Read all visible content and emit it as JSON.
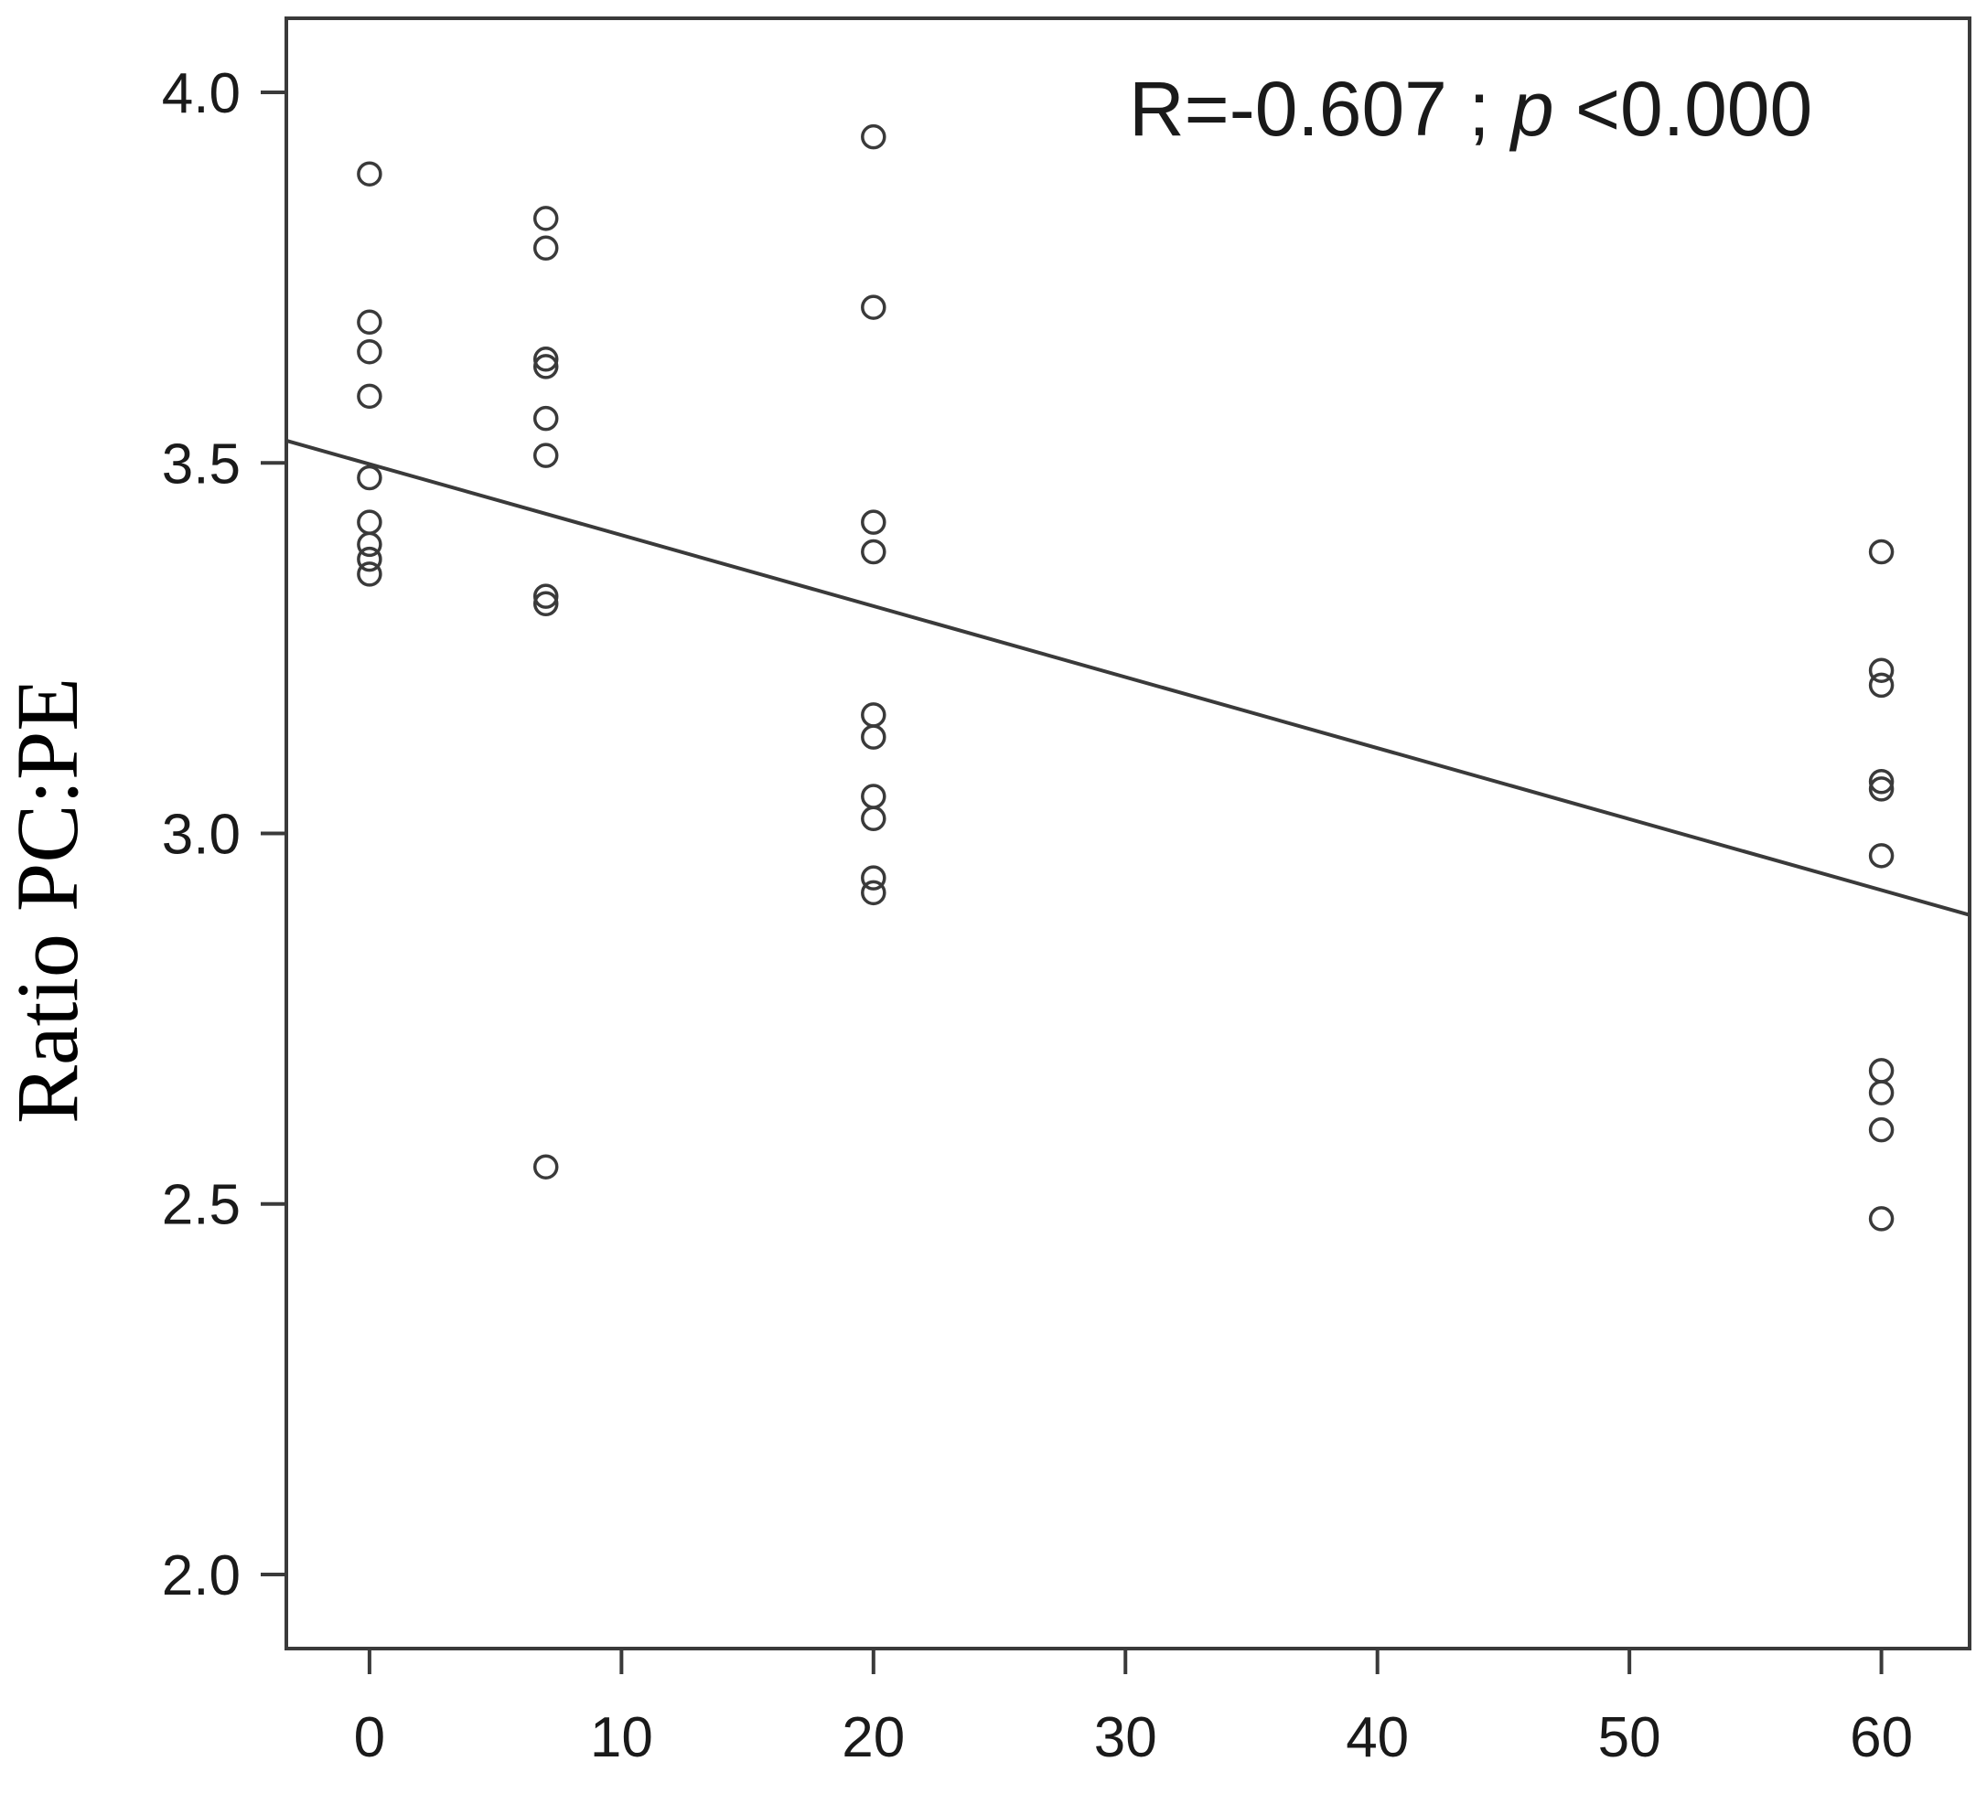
{
  "chart_data": {
    "type": "scatter",
    "title": "",
    "xlabel": "",
    "ylabel": "Ratio PC:PE",
    "xlim": [
      -3.3,
      63.5
    ],
    "ylim": [
      1.9,
      4.1
    ],
    "x_ticks": [
      0,
      10,
      20,
      30,
      40,
      50,
      60
    ],
    "x_tick_labels": [
      "0",
      "10",
      "20",
      "30",
      "40",
      "50",
      "60"
    ],
    "y_ticks": [
      2.0,
      2.5,
      3.0,
      3.5,
      4.0
    ],
    "y_tick_labels": [
      "2.0",
      "2.5",
      "3.0",
      "3.5",
      "4.0"
    ],
    "grid": false,
    "annotation": {
      "prefix": "R=-0.607 ; ",
      "p_symbol": "p",
      "suffix": " <0.000"
    },
    "points": [
      {
        "x": 0,
        "y": 3.89
      },
      {
        "x": 0,
        "y": 3.69
      },
      {
        "x": 0,
        "y": 3.65
      },
      {
        "x": 0,
        "y": 3.59
      },
      {
        "x": 0,
        "y": 3.48
      },
      {
        "x": 0,
        "y": 3.42
      },
      {
        "x": 0,
        "y": 3.39
      },
      {
        "x": 0,
        "y": 3.37
      },
      {
        "x": 0,
        "y": 3.35
      },
      {
        "x": 7,
        "y": 3.83
      },
      {
        "x": 7,
        "y": 3.79
      },
      {
        "x": 7,
        "y": 3.64
      },
      {
        "x": 7,
        "y": 3.63
      },
      {
        "x": 7,
        "y": 3.56
      },
      {
        "x": 7,
        "y": 3.51
      },
      {
        "x": 7,
        "y": 3.32
      },
      {
        "x": 7,
        "y": 3.31
      },
      {
        "x": 7,
        "y": 2.55
      },
      {
        "x": 20,
        "y": 3.94
      },
      {
        "x": 20,
        "y": 3.71
      },
      {
        "x": 20,
        "y": 3.42
      },
      {
        "x": 20,
        "y": 3.38
      },
      {
        "x": 20,
        "y": 3.16
      },
      {
        "x": 20,
        "y": 3.13
      },
      {
        "x": 20,
        "y": 3.05
      },
      {
        "x": 20,
        "y": 3.02
      },
      {
        "x": 20,
        "y": 2.94
      },
      {
        "x": 20,
        "y": 2.92
      },
      {
        "x": 60,
        "y": 3.38
      },
      {
        "x": 60,
        "y": 3.22
      },
      {
        "x": 60,
        "y": 3.2
      },
      {
        "x": 60,
        "y": 3.07
      },
      {
        "x": 60,
        "y": 3.06
      },
      {
        "x": 60,
        "y": 2.97
      },
      {
        "x": 60,
        "y": 2.68
      },
      {
        "x": 60,
        "y": 2.65
      },
      {
        "x": 60,
        "y": 2.6
      },
      {
        "x": 60,
        "y": 2.48
      }
    ],
    "fit_line": {
      "x": [
        -3.3,
        63.5
      ],
      "y": [
        3.53,
        2.89
      ]
    },
    "colors": {
      "points": "#3a3a3a",
      "line": "#3a3a3a",
      "axes": "#3a3a3a"
    }
  }
}
